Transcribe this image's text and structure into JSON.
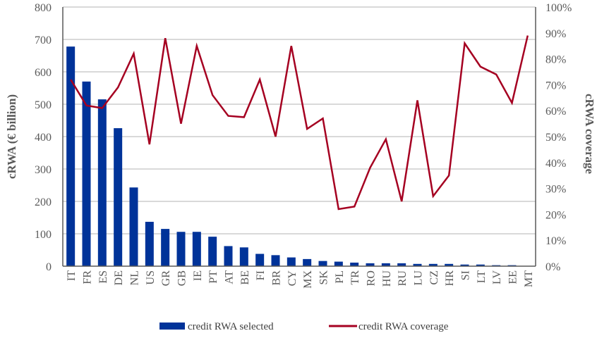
{
  "chart_data": {
    "type": "bar",
    "title": "",
    "xlabel": "",
    "ylabel": "cRWA (€ billion)",
    "y2label": "cRWA coverage",
    "ylim": [
      0,
      800
    ],
    "y2lim": [
      0,
      100
    ],
    "yticks": [
      "0",
      "100",
      "200",
      "300",
      "400",
      "500",
      "600",
      "700",
      "800"
    ],
    "y2ticks": [
      "0%",
      "10%",
      "20%",
      "30%",
      "40%",
      "50%",
      "60%",
      "70%",
      "80%",
      "90%",
      "100%"
    ],
    "grid": true,
    "legend_position": "bottom",
    "categories": [
      "IT",
      "FR",
      "ES",
      "DE",
      "NL",
      "US",
      "GR",
      "GB",
      "IE",
      "PT",
      "AT",
      "BE",
      "FI",
      "BR",
      "CY",
      "MX",
      "SK",
      "PL",
      "TR",
      "RO",
      "HU",
      "RU",
      "LU",
      "CZ",
      "HR",
      "SI",
      "LT",
      "LV",
      "EE",
      "MT"
    ],
    "series": [
      {
        "name": "credit RWA selected",
        "type": "bar",
        "axis": "left",
        "color": "#003399",
        "values": [
          678,
          570,
          515,
          426,
          243,
          137,
          115,
          106,
          106,
          91,
          62,
          58,
          38,
          34,
          27,
          22,
          16,
          14,
          11,
          9,
          9,
          9,
          7,
          7,
          7,
          5,
          5,
          3,
          3,
          1
        ]
      },
      {
        "name": "credit RWA coverage",
        "type": "line",
        "axis": "right",
        "color": "#A50021",
        "values": [
          72,
          62,
          61,
          69,
          82,
          47,
          88,
          55,
          85,
          66,
          58,
          57.5,
          72,
          50,
          85,
          53,
          57,
          22,
          23,
          38,
          49,
          25,
          64,
          27,
          35,
          86,
          77,
          74,
          63,
          89
        ]
      }
    ]
  }
}
